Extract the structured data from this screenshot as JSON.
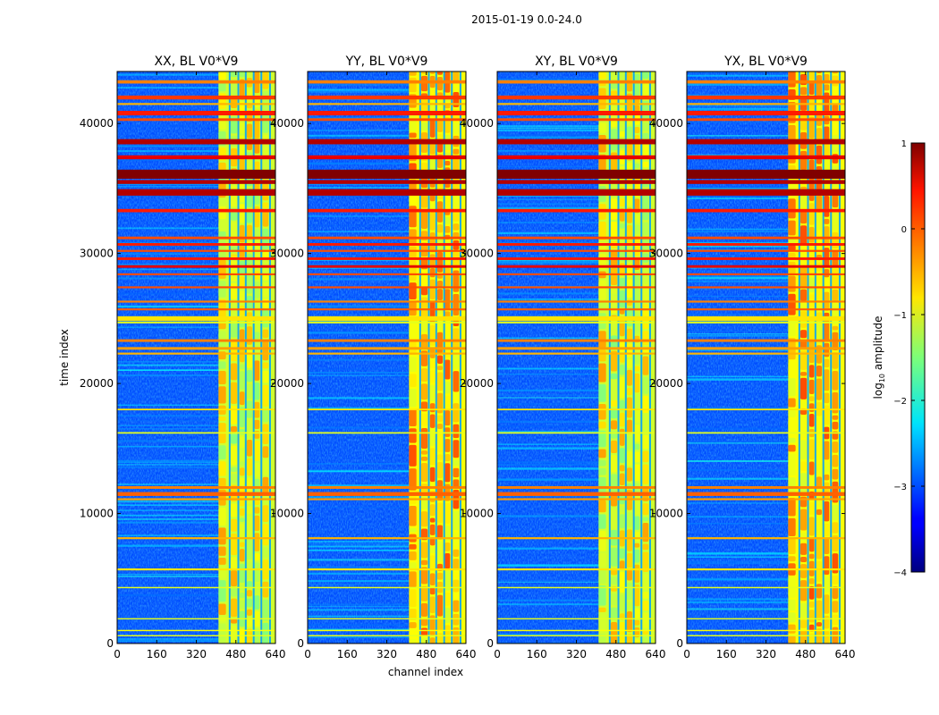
{
  "figure": {
    "suptitle": "2015-01-19 0.0-24.0"
  },
  "chart_data": {
    "type": "heatmap",
    "xlabel": "channel index",
    "ylabel": "time index",
    "xlim": [
      0,
      640
    ],
    "ylim": [
      0,
      44000
    ],
    "xticks": [
      0,
      160,
      320,
      480,
      640
    ],
    "yticks": [
      0,
      10000,
      20000,
      30000,
      40000
    ],
    "xtick_labels": [
      "0",
      "160",
      "320",
      "480",
      "640"
    ],
    "ytick_labels": [
      "0",
      "10000",
      "20000",
      "30000",
      "40000"
    ],
    "panels": [
      {
        "title": "XX, BL V0*V9",
        "pol": "XX"
      },
      {
        "title": "YY, BL V0*V9",
        "pol": "YY"
      },
      {
        "title": "XY, BL V0*V9",
        "pol": "XY"
      },
      {
        "title": "YX, BL V0*V9",
        "pol": "YX"
      }
    ],
    "colorbar": {
      "label": "log10 amplitude",
      "label_base": "log",
      "label_sub": "10",
      "label_rest": " amplitude",
      "vmin": -4,
      "vmax": 1,
      "ticks": [
        1,
        0,
        -1,
        -2,
        -3,
        -4
      ],
      "tick_labels": [
        "1",
        "0",
        "−1",
        "−2",
        "−3",
        "−4"
      ],
      "colormap": "jet"
    },
    "active_band_channels": [
      410,
      640
    ],
    "hot_rows_time_index": [
      35800,
      34700,
      38600,
      40800,
      42000,
      25000,
      11500
    ]
  }
}
